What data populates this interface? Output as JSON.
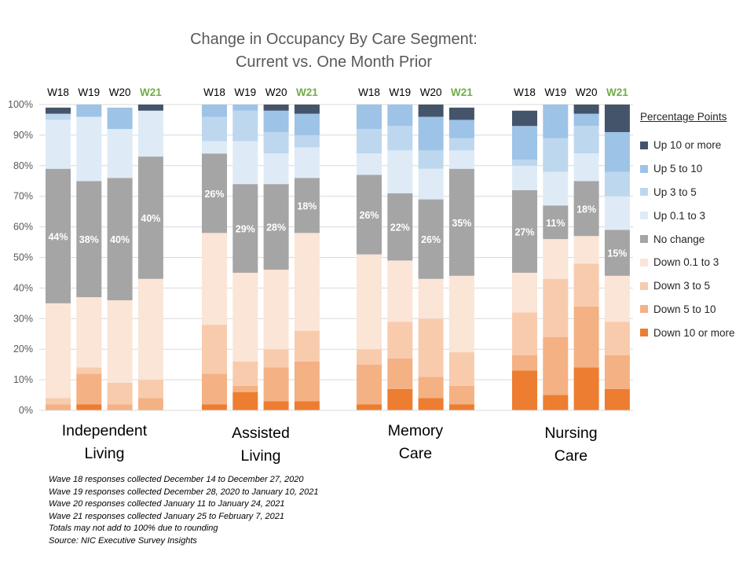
{
  "title": {
    "line1": "Change in Occupancy By Care Segment:",
    "line2": "Current vs. One Month Prior"
  },
  "legend": {
    "title": "Percentage Points"
  },
  "notes": [
    "Wave 18 responses collected  December 14 to December  27, 2020",
    "Wave 19 responses collected  December 28, 2020 to January 10, 2021",
    "Wave 20 responses collected  January 11 to January 24, 2021",
    "Wave 21 responses collected  January 25 to February 7, 2021",
    "Totals may not add to 100% due to rounding",
    "Source: NIC Executive Survey Insights"
  ],
  "chart_data": {
    "type": "bar",
    "stacked": true,
    "percent_scale": true,
    "title": "Change in Occupancy By Care Segment: Current vs. One Month Prior",
    "ylim": [
      0,
      100
    ],
    "y_ticks": [
      "0%",
      "10%",
      "20%",
      "30%",
      "40%",
      "50%",
      "60%",
      "70%",
      "80%",
      "90%",
      "100%"
    ],
    "gridlines": true,
    "legend_position": "right",
    "highlight_wave": "W21",
    "colors": {
      "highlight_wave_label": "#70ad47",
      "no_change_label": "#ffffff"
    },
    "series": [
      {
        "name": "Down 10 or more",
        "color": "#ed7d31"
      },
      {
        "name": "Down 5 to 10",
        "color": "#f4b183"
      },
      {
        "name": "Down 3 to 5",
        "color": "#f8cbad"
      },
      {
        "name": "Down 0.1 to 3",
        "color": "#fbe5d6"
      },
      {
        "name": "No change",
        "color": "#a5a5a5"
      },
      {
        "name": "Up 0.1 to 3",
        "color": "#deebf7"
      },
      {
        "name": "Up 3 to 5",
        "color": "#bdd7ee"
      },
      {
        "name": "Up 5 to 10",
        "color": "#9dc3e6"
      },
      {
        "name": "Up 10 or more",
        "color": "#44546a"
      }
    ],
    "groups": [
      {
        "name_lines": [
          "Independent",
          "Living"
        ],
        "bars": [
          {
            "wave": "W18",
            "values": [
              0,
              2,
              2,
              31,
              44,
              16,
              2,
              0,
              2
            ],
            "label": "44%"
          },
          {
            "wave": "W19",
            "values": [
              2,
              10,
              2,
              23,
              38,
              21,
              0,
              4,
              0
            ],
            "label": "38%"
          },
          {
            "wave": "W20",
            "values": [
              0,
              2,
              7,
              27,
              40,
              16,
              0,
              7,
              0
            ],
            "label": "40%"
          },
          {
            "wave": "W21",
            "values": [
              0,
              4,
              6,
              33,
              40,
              15,
              0,
              0,
              2
            ],
            "label": "40%"
          }
        ]
      },
      {
        "name_lines": [
          "Assisted",
          "Living"
        ],
        "bars": [
          {
            "wave": "W18",
            "values": [
              2,
              10,
              16,
              30,
              26,
              4,
              8,
              4,
              0
            ],
            "label": "26%"
          },
          {
            "wave": "W19",
            "values": [
              6,
              2,
              8,
              29,
              29,
              14,
              10,
              2,
              0
            ],
            "label": "29%"
          },
          {
            "wave": "W20",
            "values": [
              3,
              11,
              6,
              26,
              28,
              10,
              7,
              7,
              2
            ],
            "label": "28%"
          },
          {
            "wave": "W21",
            "values": [
              3,
              13,
              10,
              32,
              18,
              10,
              4,
              7,
              3
            ],
            "label": "18%"
          }
        ]
      },
      {
        "name_lines": [
          "Memory",
          "Care"
        ],
        "bars": [
          {
            "wave": "W18",
            "values": [
              2,
              13,
              5,
              31,
              26,
              7,
              8,
              8,
              0
            ],
            "label": "26%"
          },
          {
            "wave": "W19",
            "values": [
              7,
              10,
              12,
              20,
              22,
              14,
              8,
              7,
              0
            ],
            "label": "22%"
          },
          {
            "wave": "W20",
            "values": [
              4,
              7,
              19,
              13,
              26,
              10,
              6,
              11,
              4
            ],
            "label": "26%"
          },
          {
            "wave": "W21",
            "values": [
              2,
              6,
              11,
              25,
              35,
              6,
              4,
              6,
              4
            ],
            "label": "35%"
          }
        ]
      },
      {
        "name_lines": [
          "Nursing",
          "Care"
        ],
        "bars": [
          {
            "wave": "W18",
            "values": [
              13,
              5,
              14,
              13,
              27,
              8,
              2,
              11,
              5
            ],
            "label": "27%"
          },
          {
            "wave": "W19",
            "values": [
              5,
              19,
              19,
              13,
              11,
              11,
              11,
              11,
              0
            ],
            "label": "11%"
          },
          {
            "wave": "W20",
            "values": [
              14,
              20,
              14,
              9,
              18,
              9,
              9,
              4,
              3
            ],
            "label": "18%"
          },
          {
            "wave": "W21",
            "values": [
              7,
              11,
              11,
              15,
              15,
              11,
              8,
              13,
              9
            ],
            "label": "15%"
          }
        ]
      }
    ]
  }
}
